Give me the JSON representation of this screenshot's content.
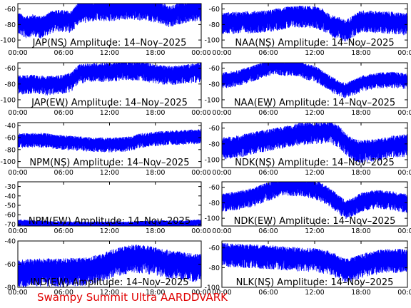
{
  "footer": "Swampy Summit Ultra AARDDVARK",
  "colors": {
    "trace": "#0000ff",
    "axes": "#000000",
    "footer": "#e00000"
  },
  "chart_data": [
    {
      "type": "line",
      "title": "JAP(NS) Amplitude: 14–Nov–2025",
      "x": "time",
      "xlim": [
        "00:00",
        "24:00"
      ],
      "xticks": [
        "00:00",
        "06:00",
        "12:00",
        "18:00",
        "00:00"
      ],
      "ylim": [
        -110,
        -53
      ],
      "yticks": [
        -100,
        -80,
        -60
      ],
      "series": [
        {
          "values": [
            [
              0,
              -74
            ],
            [
              1,
              -80
            ],
            [
              2,
              -77
            ],
            [
              3,
              -80
            ],
            [
              4,
              -75
            ],
            [
              5,
              -71
            ],
            [
              6,
              -72
            ],
            [
              7,
              -73
            ],
            [
              8,
              -60
            ],
            [
              9,
              -60
            ],
            [
              10,
              -58
            ],
            [
              11,
              -58
            ],
            [
              12,
              -58
            ],
            [
              13,
              -57
            ],
            [
              14,
              -56
            ],
            [
              15,
              -56
            ],
            [
              16,
              -57
            ],
            [
              17,
              -57
            ],
            [
              18,
              -60
            ],
            [
              19,
              -63
            ],
            [
              20,
              -67
            ],
            [
              21,
              -62
            ],
            [
              22,
              -60
            ],
            [
              23,
              -58
            ],
            [
              24,
              -58
            ]
          ],
          "spread": 14
        }
      ]
    },
    {
      "type": "line",
      "title": "NAA(NS) Amplitude: 14–Nov–2025",
      "x": "time",
      "xlim": [
        "00:00",
        "24:00"
      ],
      "xticks": [
        "00:00",
        "06:00",
        "12:00",
        "18:00",
        "00:00"
      ],
      "ylim": [
        -110,
        -53
      ],
      "yticks": [
        -100,
        -80,
        -60
      ],
      "series": [
        {
          "values": [
            [
              0,
              -75
            ],
            [
              2,
              -74
            ],
            [
              4,
              -73
            ],
            [
              6,
              -72
            ],
            [
              8,
              -68
            ],
            [
              10,
              -66
            ],
            [
              12,
              -67
            ],
            [
              13,
              -70
            ],
            [
              14,
              -78
            ],
            [
              15,
              -80
            ],
            [
              16,
              -85
            ],
            [
              17,
              -78
            ],
            [
              18,
              -72
            ],
            [
              20,
              -73
            ],
            [
              22,
              -74
            ],
            [
              24,
              -76
            ]
          ],
          "spread": 14
        }
      ]
    },
    {
      "type": "line",
      "title": "JAP(EW) Amplitude: 14–Nov–2025",
      "x": "time",
      "xlim": [
        "00:00",
        "24:00"
      ],
      "xticks": [
        "00:00",
        "06:00",
        "12:00",
        "18:00",
        "00:00"
      ],
      "ylim": [
        -110,
        -53
      ],
      "yticks": [
        -100,
        -80,
        -60
      ],
      "series": [
        {
          "values": [
            [
              0,
              -78
            ],
            [
              2,
              -77
            ],
            [
              4,
              -79
            ],
            [
              6,
              -77
            ],
            [
              7,
              -74
            ],
            [
              8,
              -64
            ],
            [
              10,
              -62
            ],
            [
              12,
              -62
            ],
            [
              14,
              -60
            ],
            [
              16,
              -60
            ],
            [
              18,
              -64
            ],
            [
              20,
              -66
            ],
            [
              22,
              -64
            ],
            [
              24,
              -62
            ]
          ],
          "spread": 12
        }
      ]
    },
    {
      "type": "line",
      "title": "NAA(EW) Amplitude: 14–Nov–2025",
      "x": "time",
      "xlim": [
        "00:00",
        "24:00"
      ],
      "xticks": [
        "00:00",
        "06:00",
        "12:00",
        "18:00",
        "00:00"
      ],
      "ylim": [
        -110,
        -53
      ],
      "yticks": [
        -100,
        -80,
        -60
      ],
      "series": [
        {
          "values": [
            [
              0,
              -73
            ],
            [
              2,
              -70
            ],
            [
              4,
              -64
            ],
            [
              6,
              -57
            ],
            [
              7,
              -55
            ],
            [
              8,
              -57
            ],
            [
              10,
              -57
            ],
            [
              11,
              -62
            ],
            [
              12,
              -64
            ],
            [
              13,
              -70
            ],
            [
              14,
              -77
            ],
            [
              15,
              -82
            ],
            [
              16,
              -86
            ],
            [
              17,
              -82
            ],
            [
              18,
              -77
            ],
            [
              20,
              -73
            ],
            [
              22,
              -72
            ],
            [
              24,
              -74
            ]
          ],
          "spread": 10
        }
      ]
    },
    {
      "type": "line",
      "title": "NPM(NS) Amplitude: 14–Nov–2025",
      "x": "time",
      "xlim": [
        "00:00",
        "24:00"
      ],
      "xticks": [
        "00:00",
        "06:00",
        "12:00",
        "18:00",
        "00:00"
      ],
      "ylim": [
        -110,
        -35
      ],
      "yticks": [
        -100,
        -80,
        -60,
        -40
      ],
      "series": [
        {
          "values": [
            [
              0,
              -62
            ],
            [
              3,
              -61
            ],
            [
              6,
              -65
            ],
            [
              9,
              -68
            ],
            [
              12,
              -69
            ],
            [
              14,
              -68
            ],
            [
              15,
              -66
            ],
            [
              16,
              -62
            ],
            [
              18,
              -59
            ],
            [
              20,
              -57
            ],
            [
              22,
              -56
            ],
            [
              24,
              -55
            ]
          ],
          "spread": 12
        }
      ]
    },
    {
      "type": "line",
      "title": "NDK(NS) Amplitude: 14–Nov–2025",
      "x": "time",
      "xlim": [
        "00:00",
        "24:00"
      ],
      "xticks": [
        "00:00",
        "06:00",
        "12:00",
        "18:00",
        "00:00"
      ],
      "ylim": [
        -110,
        -53
      ],
      "yticks": [
        -100,
        -80,
        -60
      ],
      "series": [
        {
          "values": [
            [
              0,
              -82
            ],
            [
              2,
              -80
            ],
            [
              4,
              -75
            ],
            [
              6,
              -72
            ],
            [
              8,
              -68
            ],
            [
              10,
              -64
            ],
            [
              12,
              -62
            ],
            [
              14,
              -62
            ],
            [
              15,
              -66
            ],
            [
              16,
              -76
            ],
            [
              17,
              -84
            ],
            [
              18,
              -86
            ],
            [
              20,
              -84
            ],
            [
              22,
              -80
            ],
            [
              24,
              -78
            ]
          ],
          "spread": 14
        }
      ]
    },
    {
      "type": "line",
      "title": "NPM(EW) Amplitude: 14–Nov–2025",
      "x": "time",
      "xlim": [
        "00:00",
        "24:00"
      ],
      "xticks": [
        "00:00",
        "06:00",
        "12:00",
        "18:00",
        "00:00"
      ],
      "ylim": [
        -72,
        -25
      ],
      "yticks": [
        -70,
        -60,
        -50,
        -40,
        -30
      ],
      "series": [
        {
          "values": [
            [
              0,
              -68
            ],
            [
              3,
              -69
            ],
            [
              6,
              -70
            ],
            [
              9,
              -70
            ],
            [
              12,
              -70
            ],
            [
              15,
              -70
            ],
            [
              18,
              -69
            ],
            [
              21,
              -69
            ],
            [
              24,
              -68
            ]
          ],
          "spread": 4
        }
      ]
    },
    {
      "type": "line",
      "title": "NDK(EW) Amplitude: 14–Nov–2025",
      "x": "time",
      "xlim": [
        "00:00",
        "24:00"
      ],
      "xticks": [
        "00:00",
        "06:00",
        "12:00",
        "18:00",
        "00:00"
      ],
      "ylim": [
        -110,
        -53
      ],
      "yticks": [
        -100,
        -80,
        -60
      ],
      "series": [
        {
          "values": [
            [
              0,
              -77
            ],
            [
              2,
              -74
            ],
            [
              4,
              -70
            ],
            [
              6,
              -62
            ],
            [
              8,
              -56
            ],
            [
              10,
              -56
            ],
            [
              12,
              -60
            ],
            [
              13,
              -64
            ],
            [
              14,
              -70
            ],
            [
              15,
              -78
            ],
            [
              16,
              -86
            ],
            [
              17,
              -82
            ],
            [
              18,
              -76
            ],
            [
              20,
              -72
            ],
            [
              22,
              -74
            ],
            [
              24,
              -78
            ]
          ],
          "spread": 12
        }
      ]
    },
    {
      "type": "line",
      "title": "IND(EW) Amplitude: 14–Nov–2025",
      "x": "time",
      "xlim": [
        "00:00",
        "24:00"
      ],
      "xticks": [
        "00:00",
        "06:00",
        "12:00",
        "18:00",
        "00:00"
      ],
      "ylim": [
        -80,
        -40
      ],
      "yticks": [
        -80,
        -60,
        -40
      ],
      "series": [
        {
          "values": [
            [
              0,
              -65
            ],
            [
              3,
              -64
            ],
            [
              6,
              -64
            ],
            [
              9,
              -63
            ],
            [
              11,
              -60
            ],
            [
              12,
              -57
            ],
            [
              13,
              -55
            ],
            [
              15,
              -52
            ],
            [
              17,
              -53
            ],
            [
              19,
              -56
            ],
            [
              21,
              -58
            ],
            [
              23,
              -60
            ],
            [
              24,
              -59
            ]
          ],
          "spread": 12
        }
      ]
    },
    {
      "type": "line",
      "title": "NLK(NS) Amplitude: 14–Nov–2025",
      "x": "time",
      "xlim": [
        "00:00",
        "24:00"
      ],
      "xticks": [
        "00:00",
        "06:00",
        "12:00",
        "18:00",
        "00:00"
      ],
      "ylim": [
        -100,
        -53
      ],
      "yticks": [
        -100,
        -80,
        -60
      ],
      "series": [
        {
          "values": [
            [
              0,
              -64
            ],
            [
              3,
              -65
            ],
            [
              6,
              -66
            ],
            [
              9,
              -68
            ],
            [
              12,
              -69
            ],
            [
              14,
              -72
            ],
            [
              16,
              -80
            ],
            [
              17,
              -78
            ],
            [
              19,
              -73
            ],
            [
              21,
              -70
            ],
            [
              23,
              -70
            ],
            [
              24,
              -71
            ]
          ],
          "spread": 12
        }
      ]
    }
  ]
}
